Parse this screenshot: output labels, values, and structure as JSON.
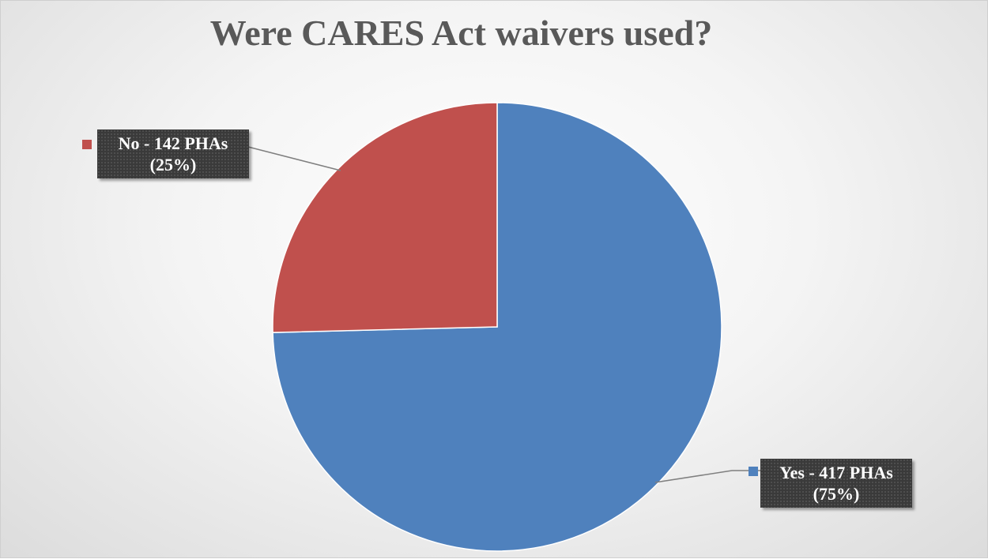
{
  "chart_data": {
    "type": "pie",
    "title": "Were CARES Act waivers used?",
    "categories": [
      "Yes",
      "No"
    ],
    "values": [
      417,
      142
    ],
    "percentages": [
      75,
      25
    ],
    "colors": [
      "#4f81bd",
      "#c0504d"
    ],
    "labels": {
      "yes": {
        "line1": "Yes - 417 PHAs",
        "line2": "(75%)"
      },
      "no": {
        "line1": "No - 142 PHAs",
        "line2": "(25%)"
      }
    },
    "start_angle_deg": 0,
    "direction": "clockwise",
    "legend": "none"
  }
}
